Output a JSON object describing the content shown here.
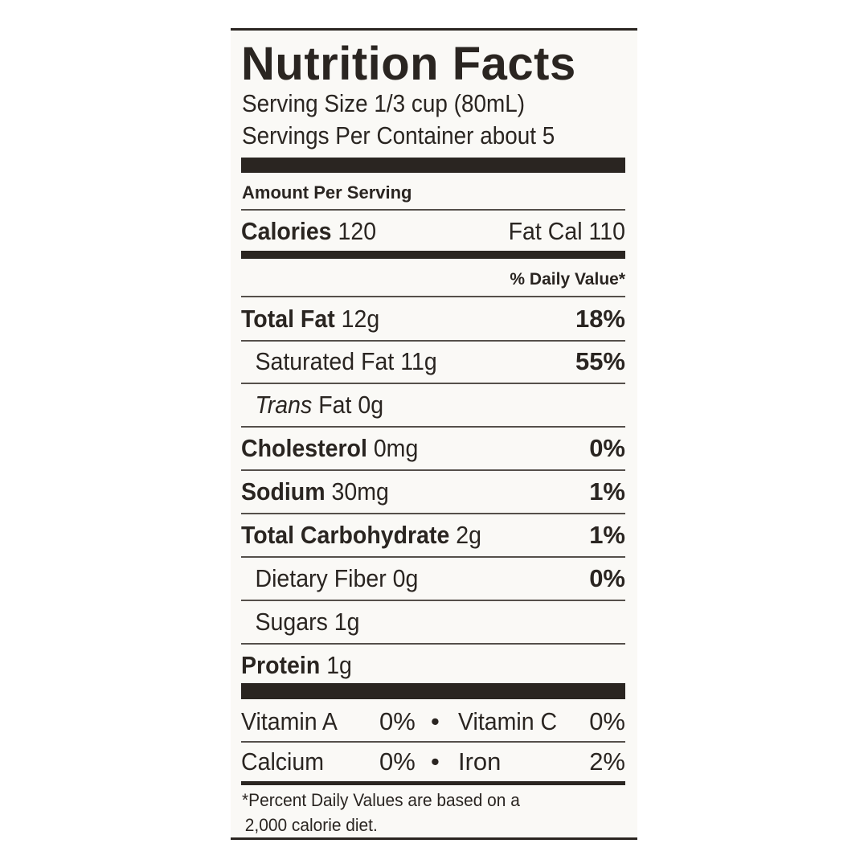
{
  "title": "Nutrition Facts",
  "serving_size": "Serving Size 1/3 cup (80mL)",
  "servings_per_container": "Servings Per Container about 5",
  "amount_per_serving": "Amount Per Serving",
  "calories": {
    "label": "Calories",
    "value": "120",
    "fat_cal": "Fat Cal 110"
  },
  "daily_value_header": "% Daily Value*",
  "nutrients": [
    {
      "label": "Total Fat",
      "amount": "12g",
      "dv": "18%"
    },
    {
      "label": "Saturated Fat",
      "amount": "11g",
      "dv": "55%"
    },
    {
      "label": "Trans",
      "amount": "Fat 0g",
      "dv": ""
    },
    {
      "label": "Cholesterol",
      "amount": "0mg",
      "dv": "0%"
    },
    {
      "label": "Sodium",
      "amount": "30mg",
      "dv": "1%"
    },
    {
      "label": "Total Carbohydrate",
      "amount": "2g",
      "dv": "1%"
    },
    {
      "label": "Dietary Fiber",
      "amount": "0g",
      "dv": "0%"
    },
    {
      "label": "Sugars",
      "amount": "1g",
      "dv": ""
    },
    {
      "label": "Protein",
      "amount": "1g",
      "dv": ""
    }
  ],
  "vitamins": [
    {
      "left_label": "Vitamin A",
      "left_value": "0%",
      "bullet": "•",
      "right_label": "Vitamin C",
      "right_value": "0%"
    },
    {
      "left_label": "Calcium",
      "left_value": "0%",
      "bullet": "•",
      "right_label": "Iron",
      "right_value": "2%"
    }
  ],
  "footnote_line1": "*Percent Daily Values are based on a",
  "footnote_line2": "2,000 calorie diet."
}
